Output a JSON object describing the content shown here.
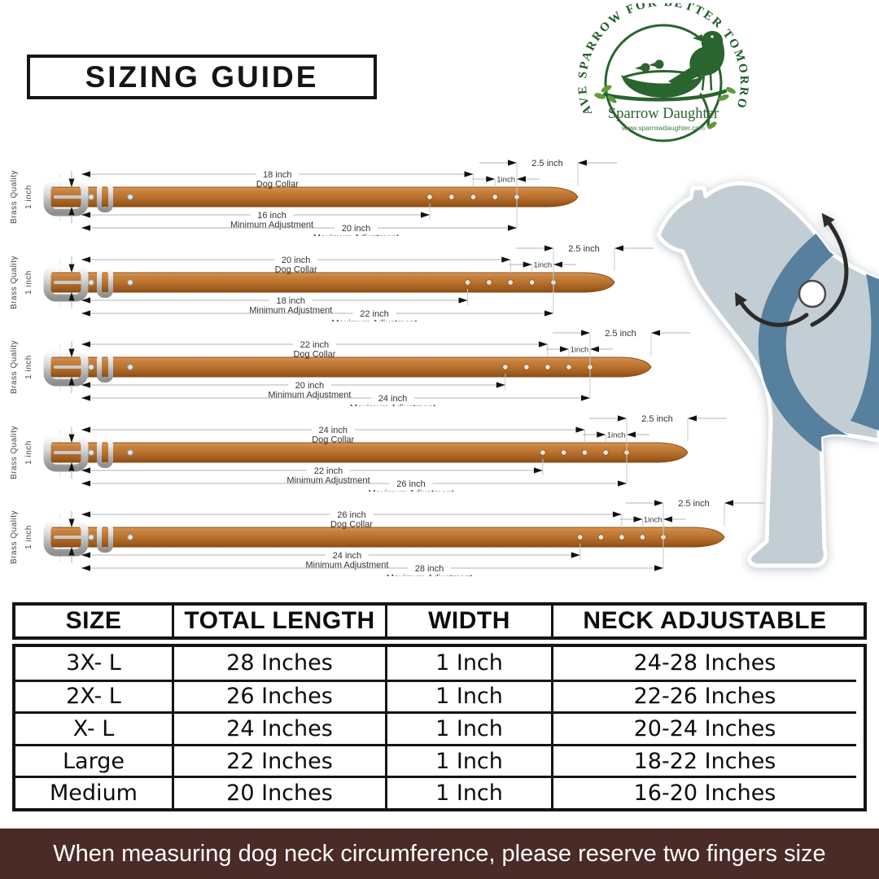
{
  "title": "SIZING GUIDE",
  "logo": {
    "arc_text": "SAVE SPARROW FOR BETTER TOMORROW",
    "brand": "Sparrow Daughter",
    "website": "www.sparrowdaughter.com"
  },
  "diagram_labels": {
    "collar_label": "Dog Collar",
    "min_label": "Minimum Adjustment",
    "max_label": "Maximum Adjustment",
    "tip_width": "2.5 inch",
    "hole_gap": "1inch",
    "side_quality": "Brass Quality",
    "side_width": "1 inch"
  },
  "collars": [
    {
      "collar": "18 inch",
      "min": "16 inch",
      "max": "20 inch"
    },
    {
      "collar": "20 inch",
      "min": "18 inch",
      "max": "22 inch"
    },
    {
      "collar": "22 inch",
      "min": "20 inch",
      "max": "24 inch"
    },
    {
      "collar": "24 inch",
      "min": "22 inch",
      "max": "26 inch"
    },
    {
      "collar": "26 inch",
      "min": "24 inch",
      "max": "28 inch"
    }
  ],
  "table": {
    "headers": [
      "SIZE",
      "TOTAL LENGTH",
      "WIDTH",
      "NECK ADJUSTABLE"
    ],
    "rows": [
      [
        "3X- L",
        "28 Inches",
        "1 Inch",
        "24-28 Inches"
      ],
      [
        "2X- L",
        "26 Inches",
        "1 Inch",
        "22-26 Inches"
      ],
      [
        "X- L",
        "24 Inches",
        "1 Inch",
        "20-24 Inches"
      ],
      [
        "Large",
        "22 Inches",
        "1 Inch",
        "18-22 Inches"
      ],
      [
        "Medium",
        "20 Inches",
        "1 Inch",
        "16-20 Inches"
      ]
    ]
  },
  "footer": {
    "text": "When measuring dog neck circumference, please reserve two fingers size"
  },
  "colors": {
    "leather": "#b9722f",
    "leather_dark": "#8a4c15",
    "logo_green": "#2a642e",
    "leaf_green": "#5f9c39",
    "footer_bg": "#4a2b27",
    "dog_body": "#c3cdd4",
    "dog_harness": "#577f9e",
    "table_border": "#141414"
  }
}
